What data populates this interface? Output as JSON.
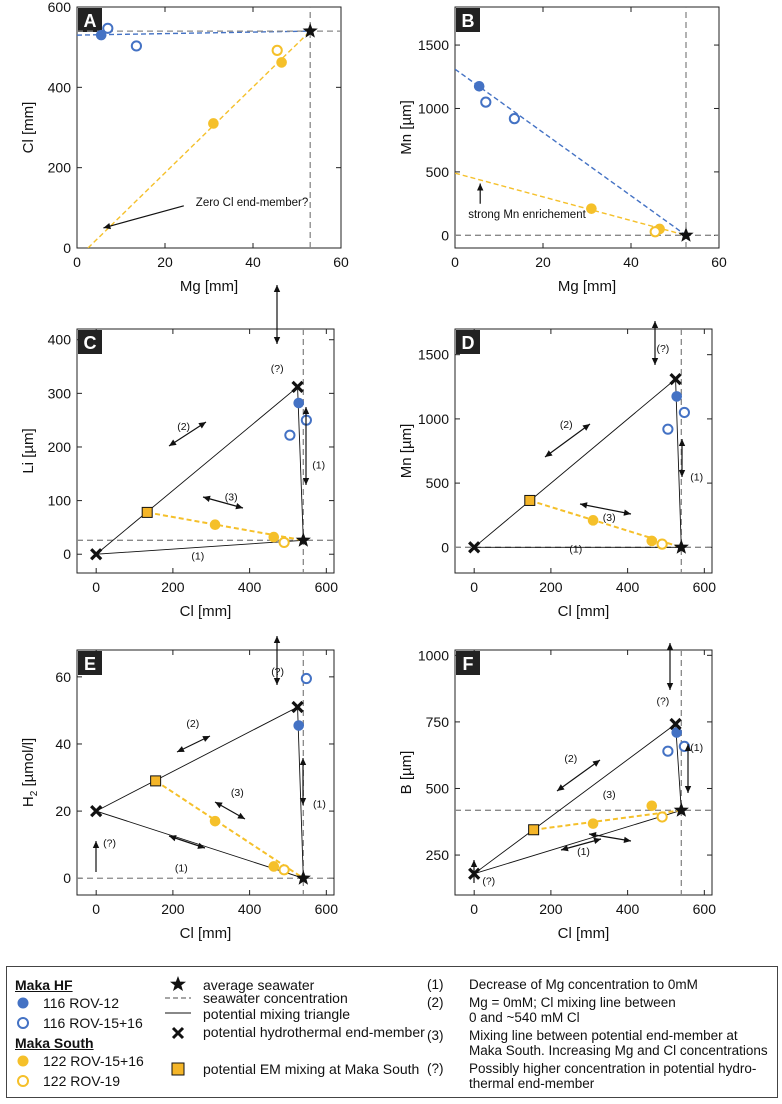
{
  "colors": {
    "blue": "#4472c4",
    "orange": "#f5c02a",
    "square_fill": "#f4b528",
    "grid": "#888888",
    "black": "#111111"
  },
  "chart_data": [
    {
      "panel": "A",
      "type": "scatter",
      "xlabel": "Mg [mm]",
      "ylabel": "Cl [mm]",
      "xlim": [
        0,
        60
      ],
      "ylim": [
        0,
        600
      ],
      "xticks": [
        0,
        20,
        40,
        60
      ],
      "yticks": [
        0,
        200,
        400,
        600
      ],
      "seawater": {
        "x": 53,
        "y": 540
      },
      "series": [
        {
          "name": "116 ROV-12",
          "color": "blue",
          "filled": true,
          "points": [
            [
              5.5,
              530
            ]
          ]
        },
        {
          "name": "116 ROV-15+16",
          "color": "blue",
          "filled": false,
          "points": [
            [
              7,
              547
            ],
            [
              13.5,
              503
            ]
          ]
        },
        {
          "name": "122 ROV-15+16",
          "color": "orange",
          "filled": true,
          "points": [
            [
              31,
              310
            ],
            [
              46.5,
              462
            ]
          ]
        },
        {
          "name": "122 ROV-19",
          "color": "orange",
          "filled": false,
          "points": [
            [
              45.5,
              492
            ]
          ]
        }
      ],
      "lines": [
        {
          "style": "dashed",
          "color": "blue",
          "from": [
            0,
            530
          ],
          "to": [
            53,
            540
          ]
        },
        {
          "style": "dashed",
          "color": "orange",
          "from": [
            2.5,
            0
          ],
          "to": [
            53,
            540
          ]
        },
        {
          "style": "dashed",
          "color": "grid",
          "from": [
            0,
            540
          ],
          "to": [
            60,
            540
          ]
        },
        {
          "style": "dashed",
          "color": "grid",
          "from": [
            53,
            0
          ],
          "to": [
            53,
            600
          ]
        }
      ],
      "annotations": [
        {
          "text": "Zero Cl end-member?",
          "x": 27,
          "y": 115,
          "arrow_to": [
            6,
            50
          ]
        }
      ]
    },
    {
      "panel": "B",
      "type": "scatter",
      "xlabel": "Mg [mm]",
      "ylabel": "Mn [µm]",
      "xlim": [
        0,
        60
      ],
      "ylim": [
        -100,
        1800
      ],
      "xticks": [
        0,
        20,
        40,
        60
      ],
      "yticks": [
        0,
        500,
        1000,
        1500
      ],
      "seawater": {
        "x": 52.5,
        "y": 0
      },
      "series": [
        {
          "name": "116 ROV-12",
          "color": "blue",
          "filled": true,
          "points": [
            [
              5.5,
              1175
            ]
          ]
        },
        {
          "name": "116 ROV-15+16",
          "color": "blue",
          "filled": false,
          "points": [
            [
              7,
              1050
            ],
            [
              13.5,
              920
            ]
          ]
        },
        {
          "name": "122 ROV-15+16",
          "color": "orange",
          "filled": true,
          "points": [
            [
              31,
              210
            ],
            [
              46.5,
              50
            ]
          ]
        },
        {
          "name": "122 ROV-19",
          "color": "orange",
          "filled": false,
          "points": [
            [
              45.5,
              28
            ]
          ]
        }
      ],
      "lines": [
        {
          "style": "dashed",
          "color": "blue",
          "from": [
            0,
            1310
          ],
          "to": [
            52.5,
            0
          ]
        },
        {
          "style": "dashed",
          "color": "orange",
          "from": [
            0,
            490
          ],
          "to": [
            52.5,
            0
          ]
        },
        {
          "style": "dashed",
          "color": "grid",
          "from": [
            0,
            0
          ],
          "to": [
            60,
            0
          ]
        },
        {
          "style": "dashed",
          "color": "grid",
          "from": [
            52.5,
            -100
          ],
          "to": [
            52.5,
            1800
          ]
        }
      ],
      "annotations": [
        {
          "text": "strong Mn enrichement",
          "x": 3,
          "y": 170,
          "arrow_to": [
            3,
            440
          ]
        }
      ]
    },
    {
      "panel": "C",
      "type": "scatter",
      "xlabel": "Cl [mm]",
      "ylabel": "Li [µm]",
      "xlim": [
        -50,
        620
      ],
      "ylim": [
        -35,
        420
      ],
      "xticks": [
        0,
        200,
        400,
        600
      ],
      "yticks": [
        0,
        100,
        200,
        300,
        400
      ],
      "seawater": {
        "x": 540,
        "y": 26
      },
      "end_member": {
        "x": 525,
        "y": 312
      },
      "zero_point": {
        "x": 0,
        "y": 0
      },
      "em_mixing": {
        "x": 133,
        "y": 78
      },
      "series": [
        {
          "name": "116 ROV-12",
          "color": "blue",
          "filled": true,
          "points": [
            [
              528,
              282
            ]
          ]
        },
        {
          "name": "116 ROV-15+16",
          "color": "blue",
          "filled": false,
          "points": [
            [
              505,
              222
            ],
            [
              548,
              250
            ]
          ]
        },
        {
          "name": "122 ROV-15+16",
          "color": "orange",
          "filled": true,
          "points": [
            [
              310,
              55
            ],
            [
              463,
              32
            ]
          ]
        },
        {
          "name": "122 ROV-19",
          "color": "orange",
          "filled": false,
          "points": [
            [
              490,
              22
            ]
          ]
        }
      ],
      "labels": [
        {
          "text": "(?)",
          "x": 472,
          "y": 340
        },
        {
          "text": "(2)",
          "x": 228,
          "y": 232
        },
        {
          "text": "(3)",
          "x": 352,
          "y": 100
        },
        {
          "text": "(1)",
          "x": 580,
          "y": 160
        },
        {
          "text": "(1)",
          "x": 265,
          "y": -10
        }
      ]
    },
    {
      "panel": "D",
      "type": "scatter",
      "xlabel": "Cl [mm]",
      "ylabel": "Mn [µm]",
      "xlim": [
        -50,
        620
      ],
      "ylim": [
        -200,
        1700
      ],
      "xticks": [
        0,
        200,
        400,
        600
      ],
      "yticks": [
        0,
        500,
        1000,
        1500
      ],
      "seawater": {
        "x": 540,
        "y": 0
      },
      "end_member": {
        "x": 525,
        "y": 1310
      },
      "zero_point": {
        "x": 0,
        "y": 0
      },
      "em_mixing": {
        "x": 145,
        "y": 365
      },
      "series": [
        {
          "name": "116 ROV-12",
          "color": "blue",
          "filled": true,
          "points": [
            [
              528,
              1175
            ]
          ]
        },
        {
          "name": "116 ROV-15+16",
          "color": "blue",
          "filled": false,
          "points": [
            [
              505,
              920
            ],
            [
              548,
              1050
            ]
          ]
        },
        {
          "name": "122 ROV-15+16",
          "color": "orange",
          "filled": true,
          "points": [
            [
              310,
              210
            ],
            [
              463,
              50
            ]
          ]
        },
        {
          "name": "122 ROV-19",
          "color": "orange",
          "filled": false,
          "points": [
            [
              490,
              25
            ]
          ]
        }
      ],
      "labels": [
        {
          "text": "(?)",
          "x": 492,
          "y": 1520
        },
        {
          "text": "(2)",
          "x": 240,
          "y": 930
        },
        {
          "text": "(3)",
          "x": 352,
          "y": 205
        },
        {
          "text": "(1)",
          "x": 580,
          "y": 520
        },
        {
          "text": "(1)",
          "x": 265,
          "y": -40
        }
      ]
    },
    {
      "panel": "E",
      "type": "scatter",
      "xlabel": "Cl [mm]",
      "ylabel": "H2 [µmol/l]",
      "xlim": [
        -50,
        620
      ],
      "ylim": [
        -5,
        68
      ],
      "xticks": [
        0,
        200,
        400,
        600
      ],
      "yticks": [
        0,
        20,
        40,
        60
      ],
      "seawater": {
        "x": 540,
        "y": 0
      },
      "end_member": {
        "x": 525,
        "y": 51
      },
      "zero_point": {
        "x": 0,
        "y": 20
      },
      "em_mixing": {
        "x": 155,
        "y": 29
      },
      "series": [
        {
          "name": "116 ROV-12",
          "color": "blue",
          "filled": true,
          "points": [
            [
              528,
              45.5
            ]
          ]
        },
        {
          "name": "116 ROV-15+16",
          "color": "blue",
          "filled": false,
          "points": [
            [
              548,
              59.5
            ]
          ]
        },
        {
          "name": "122 ROV-15+16",
          "color": "orange",
          "filled": true,
          "points": [
            [
              310,
              17
            ],
            [
              463,
              3.5
            ]
          ]
        },
        {
          "name": "122 ROV-19",
          "color": "orange",
          "filled": false,
          "points": [
            [
              490,
              2.5
            ]
          ]
        }
      ],
      "labels": [
        {
          "text": "(?)",
          "x": 473,
          "y": 60.5
        },
        {
          "text": "(2)",
          "x": 252,
          "y": 45
        },
        {
          "text": "(3)",
          "x": 368,
          "y": 24.5
        },
        {
          "text": "(1)",
          "x": 582,
          "y": 21
        },
        {
          "text": "(1)",
          "x": 222,
          "y": 2
        },
        {
          "text": "(?)",
          "x": 35,
          "y": 9.5
        }
      ]
    },
    {
      "panel": "F",
      "type": "scatter",
      "xlabel": "Cl [mm]",
      "ylabel": "B [µm]",
      "xlim": [
        -50,
        620
      ],
      "ylim": [
        100,
        1020
      ],
      "xticks": [
        0,
        200,
        400,
        600
      ],
      "yticks": [
        250,
        500,
        750,
        1000
      ],
      "seawater": {
        "x": 540,
        "y": 418
      },
      "end_member": {
        "x": 525,
        "y": 742
      },
      "zero_point": {
        "x": 0,
        "y": 180
      },
      "em_mixing": {
        "x": 155,
        "y": 345
      },
      "series": [
        {
          "name": "116 ROV-12",
          "color": "blue",
          "filled": true,
          "points": [
            [
              528,
              710
            ]
          ]
        },
        {
          "name": "116 ROV-15+16",
          "color": "blue",
          "filled": false,
          "points": [
            [
              505,
              640
            ],
            [
              548,
              658
            ]
          ]
        },
        {
          "name": "122 ROV-15+16",
          "color": "orange",
          "filled": true,
          "points": [
            [
              310,
              368
            ],
            [
              463,
              435
            ]
          ]
        },
        {
          "name": "122 ROV-19",
          "color": "orange",
          "filled": false,
          "points": [
            [
              490,
              393
            ]
          ]
        }
      ],
      "labels": [
        {
          "text": "(?)",
          "x": 492,
          "y": 815
        },
        {
          "text": "(2)",
          "x": 252,
          "y": 600
        },
        {
          "text": "(3)",
          "x": 352,
          "y": 465
        },
        {
          "text": "(1)",
          "x": 580,
          "y": 640
        },
        {
          "text": "(1)",
          "x": 285,
          "y": 250
        },
        {
          "text": "(?)",
          "x": 38,
          "y": 140
        }
      ]
    }
  ],
  "legend": {
    "maka_hf_title": "Maka HF",
    "maka_south_title": "Maka South",
    "rov12": "116 ROV-12",
    "rov1516_hf": "116 ROV-15+16",
    "rov1516_south": "122 ROV-15+16",
    "rov19": "122 ROV-19",
    "avg_seawater": "average seawater",
    "seawater_conc": "seawater concentration",
    "mixing_triangle": "potential mixing triangle",
    "hydro_em": "potential hydrothermal end-member",
    "em_mixing": "potential EM mixing at Maka South",
    "note1_num": "(1)",
    "note1": "Decrease of Mg concentration to 0mM",
    "note2_num": "(2)",
    "note2_line1": "Mg = 0mM; Cl mixing line between",
    "note2_line2": "0 and ~540 mM Cl",
    "note3_num": "(3)",
    "note3_line1": "Mixing line between potential end-member at",
    "note3_line2": "Maka South. Increasing Mg and Cl concentrations",
    "note4_num": "(?)",
    "note4_line1": "Possibly higher concentration in potential hydro-",
    "note4_line2": "thermal end-member"
  }
}
